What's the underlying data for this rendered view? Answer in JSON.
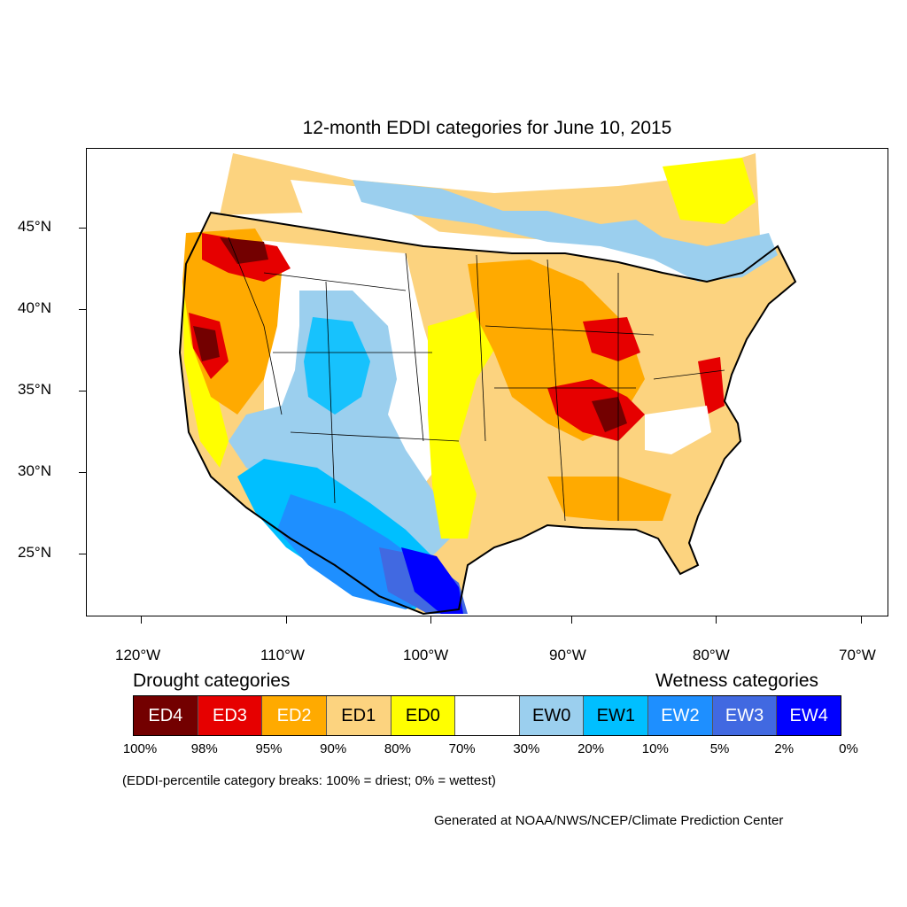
{
  "title": "12-month EDDI categories for June 10, 2015",
  "map": {
    "projection": "Lambert conformal, contiguous United States",
    "lat_labels": [
      "45°N",
      "40°N",
      "35°N",
      "30°N",
      "25°N"
    ],
    "lon_labels": [
      "120°W",
      "110°W",
      "100°W",
      "90°W",
      "80°W",
      "70°W"
    ]
  },
  "legend": {
    "drought_heading": "Drought categories",
    "wetness_heading": "Wetness categories",
    "categories": [
      {
        "label": "ED4",
        "color": "#730000",
        "text_color": "#ffffff"
      },
      {
        "label": "ED3",
        "color": "#e60000",
        "text_color": "#ffffff"
      },
      {
        "label": "ED2",
        "color": "#ffaa00",
        "text_color": "#ffffff"
      },
      {
        "label": "ED1",
        "color": "#fcd37f",
        "text_color": "#000000"
      },
      {
        "label": "ED0",
        "color": "#ffff00",
        "text_color": "#000000"
      },
      {
        "label": "",
        "color": "#ffffff",
        "text_color": "#000000"
      },
      {
        "label": "EW0",
        "color": "#9bcfee",
        "text_color": "#000000"
      },
      {
        "label": "EW1",
        "color": "#00bfff",
        "text_color": "#000000"
      },
      {
        "label": "EW2",
        "color": "#1e8fff",
        "text_color": "#ffffff"
      },
      {
        "label": "EW3",
        "color": "#4169e1",
        "text_color": "#ffffff"
      },
      {
        "label": "EW4",
        "color": "#0000ff",
        "text_color": "#ffffff"
      }
    ],
    "breaks": [
      "100%",
      "98%",
      "95%",
      "90%",
      "80%",
      "70%",
      "30%",
      "20%",
      "10%",
      "5%",
      "2%",
      "0%"
    ]
  },
  "note": "(EDDI-percentile category breaks: 100% = driest; 0% = wettest)",
  "credit": "Generated at NOAA/NWS/NCEP/Climate Prediction Center"
}
